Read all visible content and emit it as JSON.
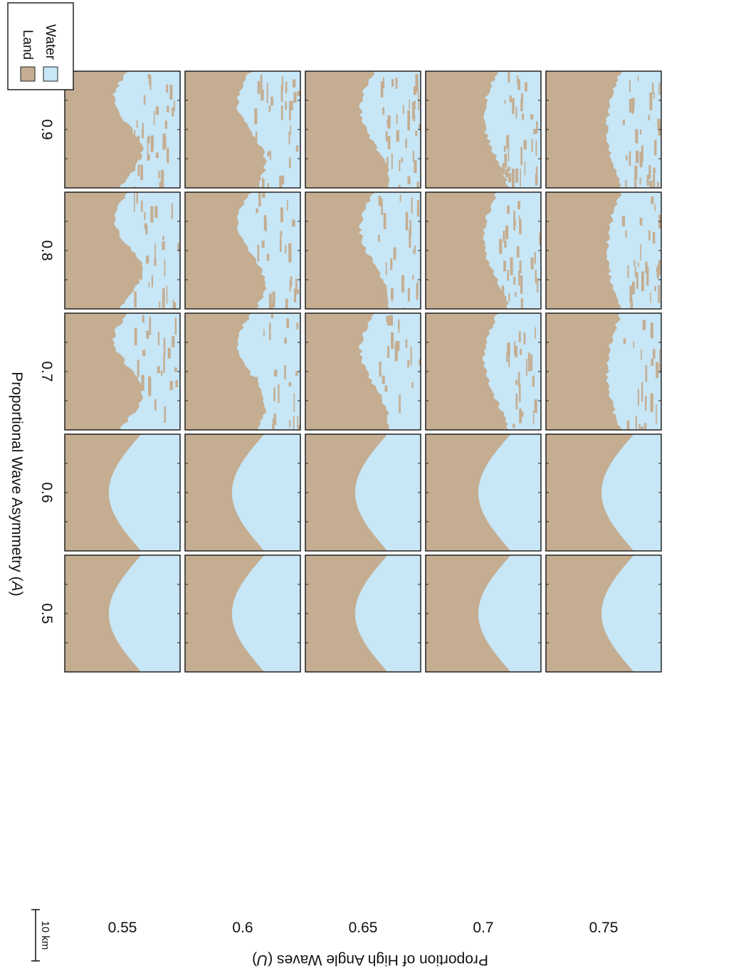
{
  "figure": {
    "x_axis_label_text": "Proportional Wave Asymmetry (",
    "x_axis_label_var": "A",
    "x_axis_label_close": ")",
    "x_values": [
      "0.5",
      "0.6",
      "0.7",
      "0.8",
      "0.9"
    ],
    "y_axis_label_text": "Proportion of High Angle Waves (",
    "y_axis_label_var": "U",
    "y_axis_label_close": ")",
    "y_values": [
      "0.75",
      "0.7",
      "0.65",
      "0.6",
      "0.55"
    ],
    "scale_bar_label": "10 km",
    "legend": [
      {
        "label": "Water",
        "color": "#c7e6f6"
      },
      {
        "label": "Land",
        "color": "#c4ad91"
      }
    ],
    "colors": {
      "water": "#c7e6f6",
      "land": "#c4ad91",
      "frame": "#222222"
    }
  }
}
